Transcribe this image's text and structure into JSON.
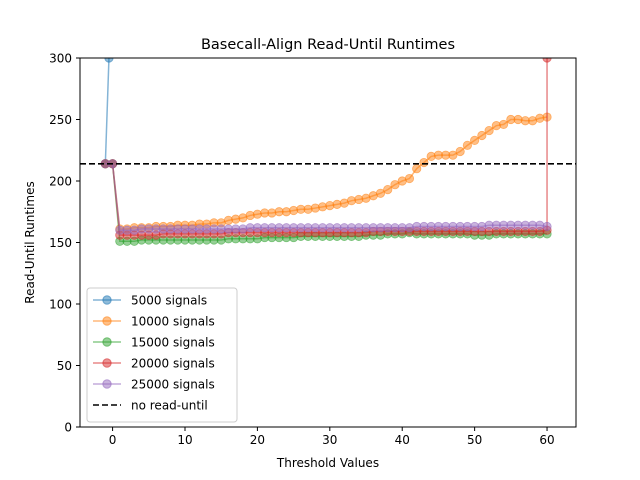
{
  "chart_data": {
    "type": "line",
    "title": "Basecall-Align Read-Until Runtimes",
    "xlabel": "Threshold Values",
    "ylabel": "Read-Until Runtimes",
    "xlim": [
      -4.5,
      64
    ],
    "ylim": [
      0,
      300
    ],
    "xticks": [
      0,
      10,
      20,
      30,
      40,
      50,
      60
    ],
    "yticks": [
      0,
      50,
      100,
      150,
      200,
      250,
      300
    ],
    "grid": false,
    "legend_position": "lower-left",
    "series": [
      {
        "name": "5000 signals",
        "color": "#1f77b4",
        "points": [
          [
            -1,
            214
          ],
          [
            -0.5,
            300
          ]
        ]
      },
      {
        "name": "10000 signals",
        "color": "#ff7f0e",
        "points": [
          [
            -1,
            214
          ],
          [
            0,
            214
          ],
          [
            1,
            161
          ],
          [
            2,
            161
          ],
          [
            3,
            162
          ],
          [
            4,
            162
          ],
          [
            5,
            162
          ],
          [
            6,
            163
          ],
          [
            7,
            163
          ],
          [
            8,
            163
          ],
          [
            9,
            164
          ],
          [
            10,
            164
          ],
          [
            11,
            164
          ],
          [
            12,
            165
          ],
          [
            13,
            165
          ],
          [
            14,
            166
          ],
          [
            15,
            166
          ],
          [
            16,
            168
          ],
          [
            17,
            169
          ],
          [
            18,
            170
          ],
          [
            19,
            172
          ],
          [
            20,
            173
          ],
          [
            21,
            174
          ],
          [
            22,
            174
          ],
          [
            23,
            175
          ],
          [
            24,
            175
          ],
          [
            25,
            176
          ],
          [
            26,
            177
          ],
          [
            27,
            177
          ],
          [
            28,
            178
          ],
          [
            29,
            179
          ],
          [
            30,
            180
          ],
          [
            31,
            181
          ],
          [
            32,
            182
          ],
          [
            33,
            184
          ],
          [
            34,
            185
          ],
          [
            35,
            186
          ],
          [
            36,
            188
          ],
          [
            37,
            190
          ],
          [
            38,
            193
          ],
          [
            39,
            197
          ],
          [
            40,
            200
          ],
          [
            41,
            202
          ],
          [
            42,
            210
          ],
          [
            43,
            215
          ],
          [
            44,
            220
          ],
          [
            45,
            221
          ],
          [
            46,
            221
          ],
          [
            47,
            221
          ],
          [
            48,
            224
          ],
          [
            49,
            229
          ],
          [
            50,
            233
          ],
          [
            51,
            237
          ],
          [
            52,
            241
          ],
          [
            53,
            245
          ],
          [
            54,
            246
          ],
          [
            55,
            250
          ],
          [
            56,
            250
          ],
          [
            57,
            249
          ],
          [
            58,
            249
          ],
          [
            59,
            251
          ],
          [
            60,
            252
          ]
        ]
      },
      {
        "name": "15000 signals",
        "color": "#2ca02c",
        "points": [
          [
            -1,
            214
          ],
          [
            0,
            214
          ],
          [
            1,
            151
          ],
          [
            2,
            151
          ],
          [
            3,
            151
          ],
          [
            4,
            152
          ],
          [
            5,
            152
          ],
          [
            6,
            152
          ],
          [
            7,
            152
          ],
          [
            8,
            152
          ],
          [
            9,
            152
          ],
          [
            10,
            152
          ],
          [
            11,
            152
          ],
          [
            12,
            152
          ],
          [
            13,
            152
          ],
          [
            14,
            152
          ],
          [
            15,
            152
          ],
          [
            16,
            153
          ],
          [
            17,
            153
          ],
          [
            18,
            153
          ],
          [
            19,
            153
          ],
          [
            20,
            153
          ],
          [
            21,
            154
          ],
          [
            22,
            154
          ],
          [
            23,
            154
          ],
          [
            24,
            154
          ],
          [
            25,
            154
          ],
          [
            26,
            155
          ],
          [
            27,
            155
          ],
          [
            28,
            155
          ],
          [
            29,
            155
          ],
          [
            30,
            155
          ],
          [
            31,
            155
          ],
          [
            32,
            155
          ],
          [
            33,
            155
          ],
          [
            34,
            155
          ],
          [
            35,
            156
          ],
          [
            36,
            156
          ],
          [
            37,
            156
          ],
          [
            38,
            157
          ],
          [
            39,
            157
          ],
          [
            40,
            157
          ],
          [
            41,
            158
          ],
          [
            42,
            157
          ],
          [
            43,
            157
          ],
          [
            44,
            157
          ],
          [
            45,
            157
          ],
          [
            46,
            157
          ],
          [
            47,
            157
          ],
          [
            48,
            157
          ],
          [
            49,
            157
          ],
          [
            50,
            156
          ],
          [
            51,
            156
          ],
          [
            52,
            156
          ],
          [
            53,
            157
          ],
          [
            54,
            157
          ],
          [
            55,
            157
          ],
          [
            56,
            157
          ],
          [
            57,
            157
          ],
          [
            58,
            157
          ],
          [
            59,
            157
          ],
          [
            60,
            157
          ]
        ]
      },
      {
        "name": "20000 signals",
        "color": "#d62728",
        "points": [
          [
            -1,
            214
          ],
          [
            0,
            214
          ],
          [
            1,
            156
          ],
          [
            2,
            156
          ],
          [
            3,
            156
          ],
          [
            4,
            156
          ],
          [
            5,
            156
          ],
          [
            6,
            156
          ],
          [
            7,
            157
          ],
          [
            8,
            157
          ],
          [
            9,
            157
          ],
          [
            10,
            157
          ],
          [
            11,
            157
          ],
          [
            12,
            157
          ],
          [
            13,
            157
          ],
          [
            14,
            157
          ],
          [
            15,
            157
          ],
          [
            16,
            158
          ],
          [
            17,
            158
          ],
          [
            18,
            158
          ],
          [
            19,
            158
          ],
          [
            20,
            158
          ],
          [
            21,
            158
          ],
          [
            22,
            158
          ],
          [
            23,
            158
          ],
          [
            24,
            158
          ],
          [
            25,
            158
          ],
          [
            26,
            158
          ],
          [
            27,
            158
          ],
          [
            28,
            158
          ],
          [
            29,
            158
          ],
          [
            30,
            158
          ],
          [
            31,
            158
          ],
          [
            32,
            158
          ],
          [
            33,
            158
          ],
          [
            34,
            158
          ],
          [
            35,
            158
          ],
          [
            36,
            159
          ],
          [
            37,
            159
          ],
          [
            38,
            159
          ],
          [
            39,
            159
          ],
          [
            40,
            159
          ],
          [
            41,
            159
          ],
          [
            42,
            159
          ],
          [
            43,
            159
          ],
          [
            44,
            159
          ],
          [
            45,
            159
          ],
          [
            46,
            159
          ],
          [
            47,
            159
          ],
          [
            48,
            159
          ],
          [
            49,
            159
          ],
          [
            50,
            159
          ],
          [
            51,
            159
          ],
          [
            52,
            159
          ],
          [
            53,
            159
          ],
          [
            54,
            159
          ],
          [
            55,
            159
          ],
          [
            56,
            159
          ],
          [
            57,
            159
          ],
          [
            58,
            159
          ],
          [
            59,
            159
          ],
          [
            60,
            160
          ],
          [
            60,
            300
          ]
        ]
      },
      {
        "name": "25000 signals",
        "color": "#9467bd",
        "points": [
          [
            -1,
            214
          ],
          [
            0,
            214
          ],
          [
            1,
            160
          ],
          [
            2,
            160
          ],
          [
            3,
            160
          ],
          [
            4,
            161
          ],
          [
            5,
            161
          ],
          [
            6,
            161
          ],
          [
            7,
            161
          ],
          [
            8,
            161
          ],
          [
            9,
            161
          ],
          [
            10,
            161
          ],
          [
            11,
            161
          ],
          [
            12,
            161
          ],
          [
            13,
            161
          ],
          [
            14,
            161
          ],
          [
            15,
            161
          ],
          [
            16,
            161
          ],
          [
            17,
            161
          ],
          [
            18,
            161
          ],
          [
            19,
            162
          ],
          [
            20,
            162
          ],
          [
            21,
            162
          ],
          [
            22,
            162
          ],
          [
            23,
            162
          ],
          [
            24,
            162
          ],
          [
            25,
            162
          ],
          [
            26,
            162
          ],
          [
            27,
            162
          ],
          [
            28,
            162
          ],
          [
            29,
            162
          ],
          [
            30,
            162
          ],
          [
            31,
            162
          ],
          [
            32,
            162
          ],
          [
            33,
            162
          ],
          [
            34,
            162
          ],
          [
            35,
            162
          ],
          [
            36,
            162
          ],
          [
            37,
            162
          ],
          [
            38,
            162
          ],
          [
            39,
            162
          ],
          [
            40,
            162
          ],
          [
            41,
            162
          ],
          [
            42,
            163
          ],
          [
            43,
            163
          ],
          [
            44,
            163
          ],
          [
            45,
            163
          ],
          [
            46,
            163
          ],
          [
            47,
            163
          ],
          [
            48,
            163
          ],
          [
            49,
            163
          ],
          [
            50,
            163
          ],
          [
            51,
            163
          ],
          [
            52,
            164
          ],
          [
            53,
            164
          ],
          [
            54,
            164
          ],
          [
            55,
            164
          ],
          [
            56,
            164
          ],
          [
            57,
            164
          ],
          [
            58,
            164
          ],
          [
            59,
            164
          ],
          [
            60,
            163
          ]
        ]
      },
      {
        "name": "no read-until",
        "color": "#000000",
        "style": "dashed",
        "hline": 214
      }
    ]
  }
}
